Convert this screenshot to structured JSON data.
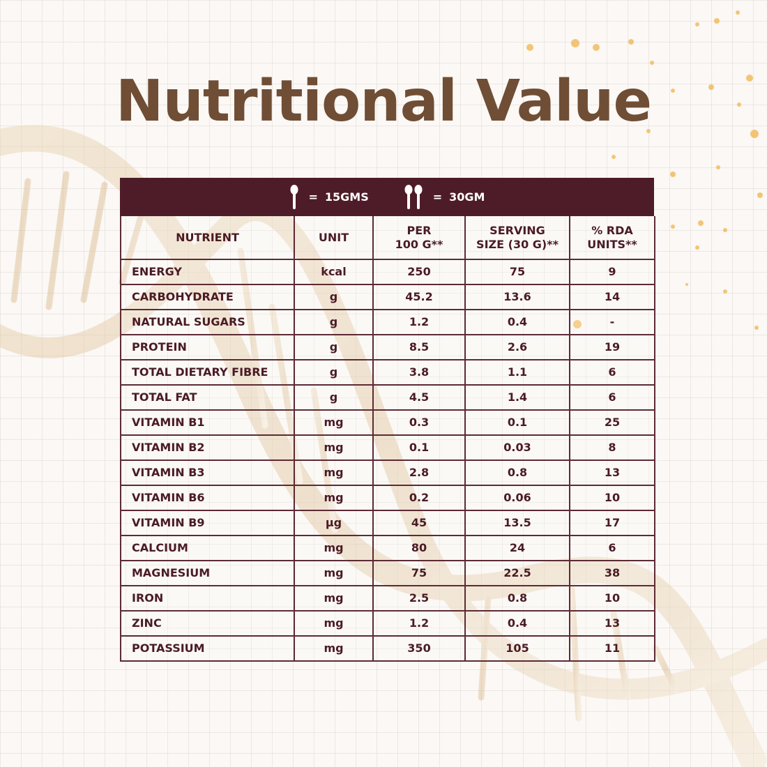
{
  "title": "Nutritional Value",
  "legend": {
    "single": {
      "icon": "spoon-icon",
      "equals": "=",
      "label": "15GMS"
    },
    "double": {
      "icon": "two-spoons-icon",
      "equals": "=",
      "label": "30GM"
    }
  },
  "table": {
    "headers": [
      [
        "NUTRIENT"
      ],
      [
        "UNIT"
      ],
      [
        "PER",
        "100 G**"
      ],
      [
        "SERVING",
        "SIZE (30 G)**"
      ],
      [
        "% RDA",
        "UNITS**"
      ]
    ],
    "rows": [
      [
        "ENERGY",
        "kcal",
        "250",
        "75",
        "9"
      ],
      [
        "CARBOHYDRATE",
        "g",
        "45.2",
        "13.6",
        "14"
      ],
      [
        "NATURAL SUGARS",
        "g",
        "1.2",
        "0.4",
        "-"
      ],
      [
        "PROTEIN",
        "g",
        "8.5",
        "2.6",
        "19"
      ],
      [
        "TOTAL DIETARY FIBRE",
        "g",
        "3.8",
        "1.1",
        "6"
      ],
      [
        "TOTAL FAT",
        "g",
        "4.5",
        "1.4",
        "6"
      ],
      [
        "VITAMIN B1",
        "mg",
        "0.3",
        "0.1",
        "25"
      ],
      [
        "VITAMIN B2",
        "mg",
        "0.1",
        "0.03",
        "8"
      ],
      [
        "VITAMIN B3",
        "mg",
        "2.8",
        "0.8",
        "13"
      ],
      [
        "VITAMIN B6",
        "mg",
        "0.2",
        "0.06",
        "10"
      ],
      [
        "VITAMIN B9",
        "µg",
        "45",
        "13.5",
        "17"
      ],
      [
        "CALCIUM",
        "mg",
        "80",
        "24",
        "6"
      ],
      [
        "MAGNESIUM",
        "mg",
        "75",
        "22.5",
        "38"
      ],
      [
        "IRON",
        "mg",
        "2.5",
        "0.8",
        "10"
      ],
      [
        "ZINC",
        "mg",
        "1.2",
        "0.4",
        "13"
      ],
      [
        "POTASSIUM",
        "mg",
        "350",
        "105",
        "11"
      ]
    ]
  },
  "colors": {
    "title": "#6f4e35",
    "band": "#4e1c28",
    "text": "#4a1b25",
    "border": "#5c2a34",
    "accent_gold": "#e8b25a"
  }
}
